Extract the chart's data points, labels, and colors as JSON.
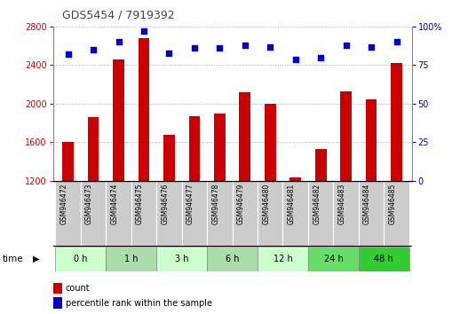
{
  "title": "GDS5454 / 7919392",
  "samples": [
    "GSM946472",
    "GSM946473",
    "GSM946474",
    "GSM946475",
    "GSM946476",
    "GSM946477",
    "GSM946478",
    "GSM946479",
    "GSM946480",
    "GSM946481",
    "GSM946482",
    "GSM946483",
    "GSM946484",
    "GSM946485"
  ],
  "bar_values": [
    1600,
    1860,
    2460,
    2680,
    1680,
    1870,
    1900,
    2120,
    2000,
    1230,
    1530,
    2130,
    2040,
    2420
  ],
  "percentile_values": [
    82,
    85,
    90,
    97,
    83,
    86,
    86,
    88,
    87,
    79,
    80,
    88,
    87,
    90
  ],
  "bar_color": "#cc0000",
  "dot_color": "#0000cc",
  "ylim_left": [
    1200,
    2800
  ],
  "ylim_right": [
    0,
    100
  ],
  "yticks_left": [
    1200,
    1600,
    2000,
    2400,
    2800
  ],
  "yticks_right": [
    0,
    25,
    50,
    75,
    100
  ],
  "time_groups": [
    {
      "label": "0 h",
      "start": 0,
      "end": 1,
      "color": "#ccffcc"
    },
    {
      "label": "1 h",
      "start": 2,
      "end": 3,
      "color": "#aaddaa"
    },
    {
      "label": "3 h",
      "start": 4,
      "end": 5,
      "color": "#ccffcc"
    },
    {
      "label": "6 h",
      "start": 6,
      "end": 7,
      "color": "#aaddaa"
    },
    {
      "label": "12 h",
      "start": 8,
      "end": 9,
      "color": "#ccffcc"
    },
    {
      "label": "24 h",
      "start": 10,
      "end": 11,
      "color": "#66dd66"
    },
    {
      "label": "48 h",
      "start": 12,
      "end": 13,
      "color": "#33cc33"
    }
  ],
  "sample_bg_color": "#cccccc",
  "xlabel": "time",
  "grid_color": "#888888",
  "background_color": "#ffffff",
  "tick_color_left": "#cc0000",
  "tick_color_right": "#0000cc",
  "legend_count_label": "count",
  "legend_pct_label": "percentile rank within the sample",
  "title_color": "#444444"
}
